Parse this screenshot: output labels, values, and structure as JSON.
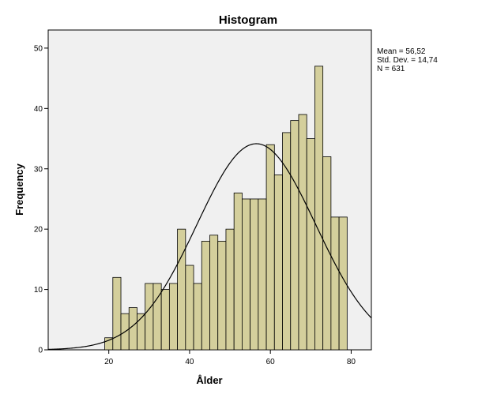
{
  "chart_data": {
    "type": "bar",
    "title": "Histogram",
    "xlabel": "Ålder",
    "ylabel": "Frequency",
    "xlim": [
      5,
      85
    ],
    "ylim": [
      0,
      53
    ],
    "x_ticks": [
      20,
      40,
      60,
      80
    ],
    "y_ticks": [
      0,
      10,
      20,
      30,
      40,
      50
    ],
    "bin_width": 2,
    "bin_starts": [
      19,
      21,
      23,
      25,
      27,
      29,
      31,
      33,
      35,
      37,
      39,
      41,
      43,
      45,
      47,
      49,
      51,
      53,
      55,
      57,
      59,
      61,
      63,
      65,
      67,
      69,
      71,
      73,
      75,
      77
    ],
    "values": [
      2,
      12,
      6,
      7,
      6,
      11,
      11,
      10,
      11,
      20,
      14,
      11,
      18,
      19,
      18,
      20,
      26,
      25,
      25,
      25,
      34,
      29,
      36,
      38,
      39,
      35,
      47,
      32,
      22,
      22
    ],
    "stats": {
      "mean_label": "Mean = 56,52",
      "std_label": "Std. Dev. = 14,74",
      "n_label": "N = 631"
    },
    "normal_curve": {
      "mean": 56.52,
      "sd": 14.74,
      "n": 631
    },
    "colors": {
      "bar_fill": "#d4cf9c",
      "bar_stroke": "#000000",
      "plot_bg": "#f0f0f0",
      "curve": "#000000"
    },
    "grid": false
  }
}
